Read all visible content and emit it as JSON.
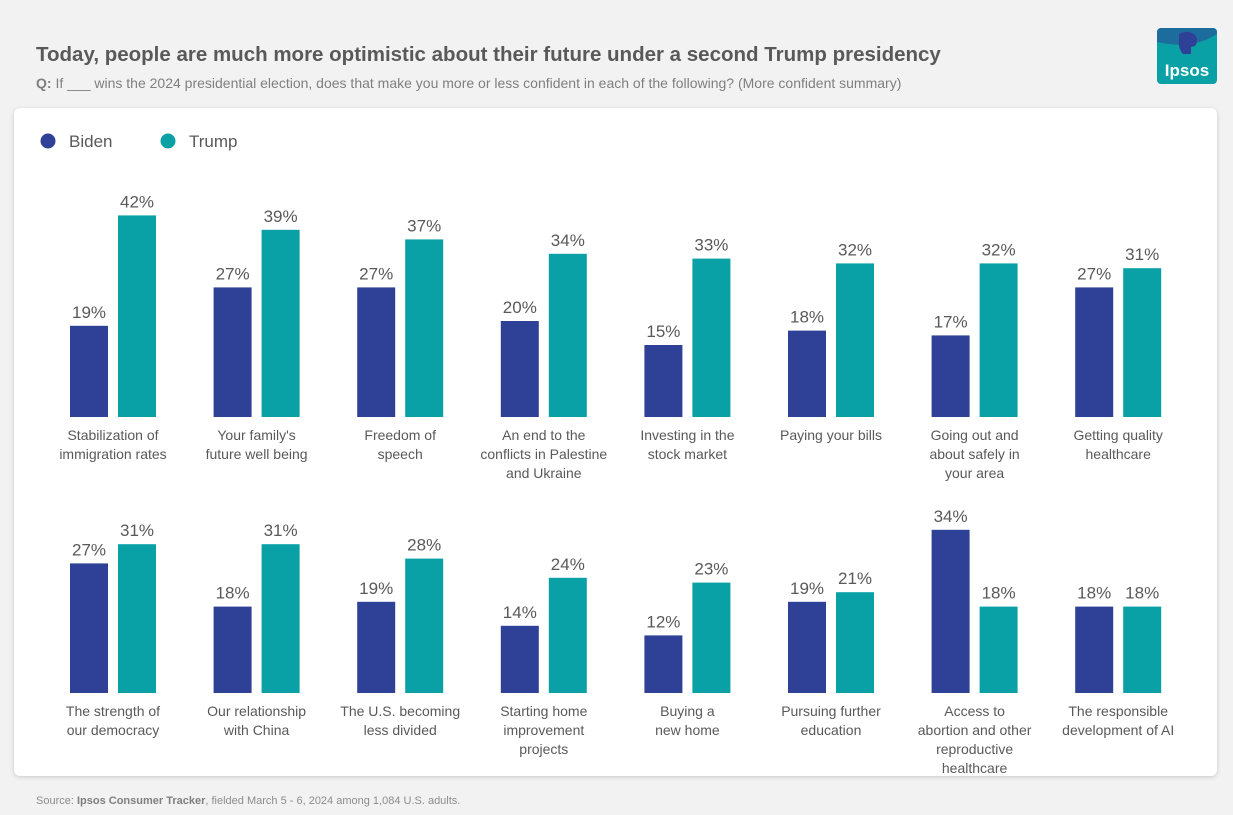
{
  "header": {
    "title": "Today, people are much more optimistic about their future under a second Trump presidency",
    "q_label": "Q:",
    "question": "If ___ wins the 2024 presidential election, does that make you more or less confident in each of the following? (More confident summary)"
  },
  "logo": {
    "text": "Ipsos",
    "color": "#0aa1a6"
  },
  "footer": {
    "source_label": "Source:",
    "source_name": "Ipsos Consumer Tracker",
    "source_text": ", fielded March 5 - 6, 2024 among 1,084 U.S. adults."
  },
  "chart_data": {
    "type": "bar",
    "unit": "%",
    "legend": [
      {
        "name": "Biden",
        "color": "#2e4197"
      },
      {
        "name": "Trump",
        "color": "#0aa1a6"
      }
    ],
    "categories": [
      [
        "Stabilization of",
        "immigration rates"
      ],
      [
        "Your family's",
        "future well being"
      ],
      [
        "Freedom of",
        "speech"
      ],
      [
        "An end to the",
        "conflicts in Palestine",
        "and Ukraine"
      ],
      [
        "Investing in the",
        "stock market"
      ],
      [
        "Paying your bills"
      ],
      [
        "Going out and",
        "about safely in",
        "your area"
      ],
      [
        "Getting quality",
        "healthcare"
      ],
      [
        "The strength of",
        "our democracy"
      ],
      [
        "Our relationship",
        "with China"
      ],
      [
        "The U.S. becoming",
        "less divided"
      ],
      [
        "Starting home",
        "improvement",
        "projects"
      ],
      [
        "Buying a",
        "new home"
      ],
      [
        "Pursuing further",
        "education"
      ],
      [
        "Access to",
        "abortion and other",
        "reproductive",
        "healthcare"
      ],
      [
        "The responsible",
        "development of AI"
      ]
    ],
    "series": [
      {
        "name": "Biden",
        "values": [
          19,
          27,
          27,
          20,
          15,
          18,
          17,
          27,
          27,
          18,
          19,
          14,
          12,
          19,
          34,
          18
        ]
      },
      {
        "name": "Trump",
        "values": [
          42,
          39,
          37,
          34,
          33,
          32,
          32,
          31,
          31,
          31,
          28,
          24,
          23,
          21,
          18,
          18
        ]
      }
    ]
  }
}
